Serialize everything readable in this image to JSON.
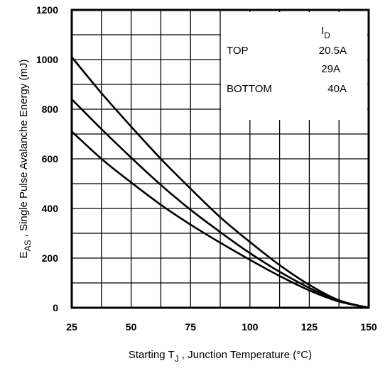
{
  "chart_data": {
    "type": "line",
    "xlabel": {
      "prefix": "Starting T",
      "subscript": "J",
      "suffix": " , Junction Temperature (°C)"
    },
    "ylabel": {
      "prefix": "E",
      "subscript": "AS",
      "suffix": " , Single Pulse Avalanche Energy (mJ)"
    },
    "xlim": [
      25,
      150
    ],
    "ylim": [
      0,
      1200
    ],
    "x_ticks": [
      25,
      50,
      75,
      100,
      125,
      150
    ],
    "y_ticks": [
      0,
      200,
      400,
      600,
      800,
      1000,
      1200
    ],
    "grid": true,
    "legend": {
      "placement": "top-right",
      "header": {
        "prefix": "I",
        "subscript": "D"
      },
      "entries": [
        {
          "position_label": "TOP",
          "value": "20.5A"
        },
        {
          "position_label": "",
          "value": "29A"
        },
        {
          "position_label": "BOTTOM",
          "value": "40A"
        }
      ]
    },
    "series": [
      {
        "x": [
          25,
          37.5,
          50,
          62.5,
          75,
          87.5,
          100,
          112.5,
          125,
          137.5,
          150
        ],
        "y": [
          1010,
          865,
          730,
          600,
          480,
          365,
          265,
          172,
          92,
          30,
          0
        ]
      },
      {
        "x": [
          25,
          37.5,
          50,
          62.5,
          75,
          87.5,
          100,
          112.5,
          125,
          137.5,
          150
        ],
        "y": [
          840,
          720,
          605,
          495,
          395,
          305,
          220,
          145,
          80,
          28,
          0
        ]
      },
      {
        "x": [
          25,
          37.5,
          50,
          62.5,
          75,
          87.5,
          100,
          112.5,
          125,
          137.5,
          150
        ],
        "y": [
          710,
          600,
          505,
          415,
          335,
          262,
          193,
          128,
          70,
          25,
          0
        ]
      }
    ]
  }
}
